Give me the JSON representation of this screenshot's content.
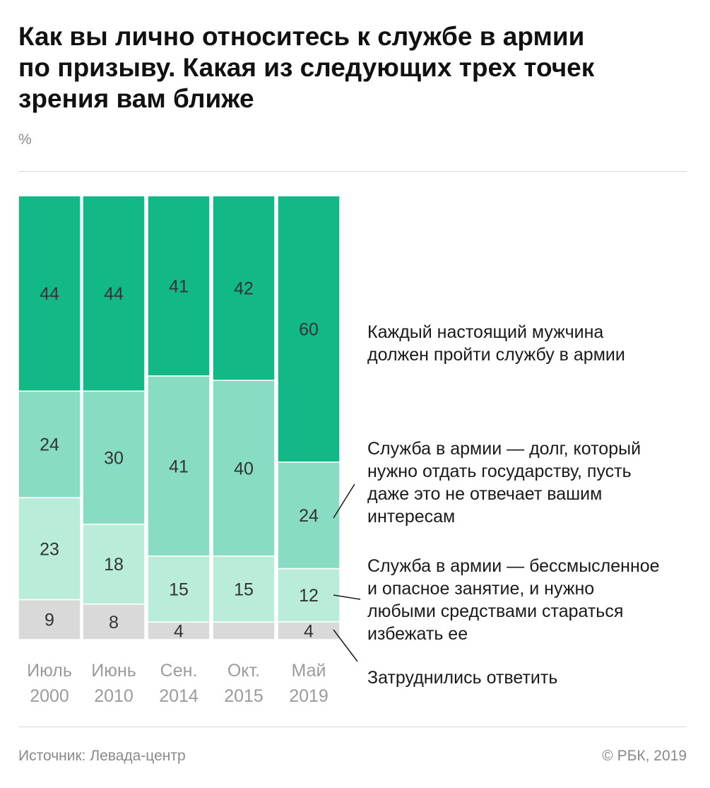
{
  "title_lines": [
    "Как вы лично относитесь к службе в армии",
    "по призыву. Какая из следующих трех точек",
    "зрения вам ближе"
  ],
  "unit": "%",
  "source": "Источник: Левада-центр",
  "copyright": "© РБК, 2019",
  "chart_data": {
    "type": "bar",
    "stacked": true,
    "normalized_to": 100,
    "categories": [
      [
        "Июль",
        "2000"
      ],
      [
        "Июнь",
        "2010"
      ],
      [
        "Сен.",
        "2014"
      ],
      [
        "Окт.",
        "2015"
      ],
      [
        "Май",
        "2019"
      ]
    ],
    "series": [
      {
        "name": "Затруднились ответить",
        "label_lines": [
          "Затруднились ответить"
        ],
        "color": "#d9d9d9",
        "values": [
          9,
          8,
          4,
          4,
          4
        ],
        "labels": [
          "9",
          "8",
          "4",
          "",
          "4"
        ]
      },
      {
        "name": "Служба в армии — бессмысленное и опасное занятие, и нужно любыми средствами стараться избежать ее",
        "label_lines": [
          "Служба в армии — бессмысленное",
          "и опасное занятие, и нужно",
          "любыми средствами стараться",
          "избежать ее"
        ],
        "color": "#b9ecd9",
        "values": [
          23,
          18,
          15,
          15,
          12
        ],
        "labels": [
          "23",
          "18",
          "15",
          "15",
          "12"
        ]
      },
      {
        "name": "Служба в армии — долг, который нужно отдать государству, пусть даже это не отвечает вашим интересам",
        "label_lines": [
          "Служба в армии — долг, который",
          "нужно отдать государству, пусть",
          "даже это не отвечает вашим",
          "интересам"
        ],
        "color": "#88dcc3",
        "values": [
          24,
          30,
          41,
          40,
          24
        ],
        "labels": [
          "24",
          "30",
          "41",
          "40",
          "24"
        ]
      },
      {
        "name": "Каждый настоящий мужчина должен пройти службу в армии",
        "label_lines": [
          "Каждый настоящий мужчина",
          "должен пройти службу в армии"
        ],
        "color": "#12b886",
        "values": [
          44,
          44,
          41,
          42,
          60
        ],
        "labels": [
          "44",
          "44",
          "41",
          "42",
          "60"
        ]
      }
    ],
    "legend": "right",
    "grid": false
  }
}
